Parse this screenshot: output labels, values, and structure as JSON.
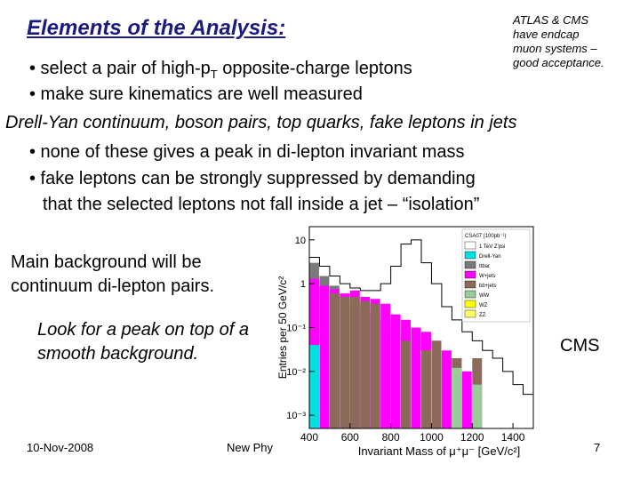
{
  "slide": {
    "title": "Elements of the Analysis:",
    "note_lines": [
      "ATLAS & CMS",
      "have endcap",
      "muon systems –",
      "good acceptance."
    ],
    "bullet1_pre": "• select a pair of high-p",
    "bullet1_sub": "T",
    "bullet1_post": " opposite-charge leptons",
    "bullet2": "• make sure kinematics are well measured",
    "heading2": "Drell-Yan continuum, boson pairs, top quarks, fake leptons in jets",
    "bullet3": "• none of these gives a peak in di-lepton invariant mass",
    "bullet4_line1": "• fake leptons can be strongly suppressed by demanding",
    "bullet4_line2": "that the selected leptons not fall inside a jet – “isolation”",
    "main_bg": "Main background will be continuum di-lepton pairs.",
    "look_for": "Look for a peak on top of a smooth background.",
    "cms_label": "CMS",
    "footer_date": "10-Nov-2008",
    "footer_conf": "New Phy",
    "page_number": "7"
  },
  "chart_data": {
    "type": "bar",
    "xlabel": "Invariant Mass of μ⁺μ⁻ [GeV/c²]",
    "ylabel": "Entries per 50 GeV/c²",
    "y_scale": "log",
    "ylim": [
      0.0005,
      20
    ],
    "xlim": [
      400,
      1500
    ],
    "x_ticks": [
      "400",
      "600",
      "800",
      "1000",
      "1200",
      "1400"
    ],
    "y_ticks": [
      "10",
      "1",
      "10⁻¹",
      "10⁻²",
      "10⁻³"
    ],
    "bin_edges": [
      400,
      450,
      500,
      550,
      600,
      650,
      700,
      750,
      800,
      850,
      900,
      950,
      1000,
      1050,
      1100,
      1150,
      1200,
      1250,
      1300,
      1350,
      1400,
      1450,
      1500
    ],
    "series": [
      {
        "name": "ttbar",
        "color": "#7a7a7a",
        "values": [
          3.0,
          1.5,
          0.9,
          0.5,
          0.35,
          0.25,
          0.2,
          0.15,
          0.1,
          0.08,
          0.06,
          0.05,
          0.03,
          0.02,
          0,
          0,
          0,
          0,
          0,
          0,
          0,
          0
        ]
      },
      {
        "name": "W+jets",
        "color": "#ff00ff",
        "values": [
          1.3,
          0.9,
          0.75,
          0.6,
          0.7,
          0.5,
          0.45,
          0.35,
          0.2,
          0.15,
          0.1,
          0.08,
          0.05,
          0.03,
          0.02,
          0.01,
          0,
          0,
          0,
          0,
          0,
          0
        ]
      },
      {
        "name": "bb+jets",
        "color": "#8b6a5a",
        "values": [
          0,
          0,
          0.6,
          0.5,
          0.5,
          0.4,
          0.35,
          0,
          0,
          0.05,
          0,
          0.03,
          0.05,
          0,
          0.02,
          0,
          0.02,
          0,
          0,
          0,
          0,
          0
        ]
      },
      {
        "name": "WW",
        "color": "#99cc99",
        "values": [
          0,
          0,
          0,
          0,
          0,
          0,
          0,
          0,
          0,
          0,
          0,
          0,
          0,
          0,
          0.012,
          0,
          0.005,
          0,
          0,
          0,
          0,
          0
        ]
      },
      {
        "name": "Drell-Yan",
        "color": "#00e0e0",
        "values": [
          0.04,
          0,
          0,
          0,
          0,
          0,
          0,
          0,
          0,
          0,
          0,
          0,
          0,
          0,
          0,
          0,
          0,
          0,
          0,
          0,
          0,
          0
        ]
      }
    ],
    "signal_outline": {
      "name": "1 TeV Z'psi",
      "values": [
        4.0,
        2.5,
        1.5,
        1.0,
        0.8,
        0.7,
        0.7,
        1.0,
        2.5,
        8.0,
        10.0,
        3.0,
        1.0,
        0.3,
        0.15,
        0.08,
        0.05,
        0.03,
        0.02,
        0.01,
        0.005,
        0.003
      ]
    },
    "legend": {
      "title": "CSA07 (100pb⁻¹)",
      "position": "top-right",
      "entries": [
        {
          "label": "1 TeV Z'psi",
          "color": "#ffffff"
        },
        {
          "label": "Drell-Yan",
          "color": "#00e0e0"
        },
        {
          "label": "ttbar",
          "color": "#7a7a7a"
        },
        {
          "label": "W+jets",
          "color": "#ff00ff"
        },
        {
          "label": "bb+jets",
          "color": "#8b6a5a"
        },
        {
          "label": "WW",
          "color": "#99cc99"
        },
        {
          "label": "WZ",
          "color": "#ffff00"
        },
        {
          "label": "ZZ",
          "color": "#ffff66"
        }
      ]
    }
  }
}
